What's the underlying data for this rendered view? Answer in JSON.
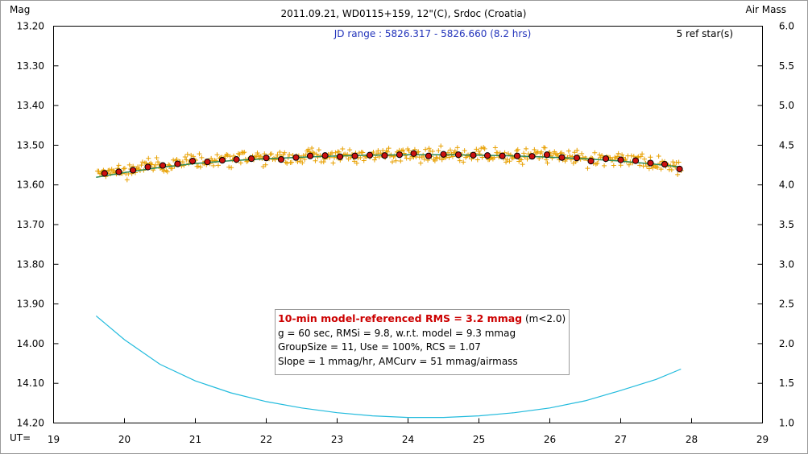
{
  "chart_data": {
    "type": "scatter",
    "title": "2011.09.21, WD0115+159, 12\"(C), Srdoc (Croatia)",
    "subtitle": "JD range : 5826.317 - 5826.660 (8.2 hrs)",
    "ref_stars": "5 ref star(s)",
    "ylabel_left": "Mag",
    "ylabel_right": "Air Mass",
    "xlabel": "UT=",
    "xlim": [
      19,
      29
    ],
    "ylim_left": [
      13.2,
      14.2
    ],
    "ylim_left_inverted": true,
    "ylim_right": [
      1.0,
      6.0
    ],
    "x_ticks": [
      "19",
      "20",
      "21",
      "22",
      "23",
      "24",
      "25",
      "26",
      "27",
      "28",
      "29"
    ],
    "y_left_ticks": [
      "13.20",
      "13.30",
      "13.40",
      "13.50",
      "13.60",
      "13.70",
      "13.80",
      "13.90",
      "14.00",
      "14.10",
      "14.20"
    ],
    "y_right_ticks": [
      "6.0",
      "5.5",
      "5.0",
      "4.5",
      "4.0",
      "3.5",
      "3.0",
      "2.5",
      "2.0",
      "1.5",
      "1.0"
    ],
    "grid": false,
    "colors": {
      "individual": "#e8a000",
      "binned_fill": "#cc1111",
      "model": "#2e8b57",
      "airmass": "#22bbdd",
      "subtitle": "#2233bb",
      "rms_headline": "#cc0000"
    },
    "series": [
      {
        "kind": "binned-10min",
        "marker": "red-circle",
        "x": [
          19.72,
          19.92,
          20.12,
          20.33,
          20.54,
          20.75,
          20.96,
          21.17,
          21.38,
          21.58,
          21.79,
          22.0,
          22.21,
          22.42,
          22.62,
          22.83,
          23.04,
          23.25,
          23.46,
          23.67,
          23.88,
          24.08,
          24.29,
          24.5,
          24.71,
          24.92,
          25.12,
          25.33,
          25.54,
          25.75,
          25.96,
          26.17,
          26.38,
          26.58,
          26.79,
          27.0,
          27.21,
          27.42,
          27.62,
          27.83
        ],
        "y": [
          13.571,
          13.567,
          13.563,
          13.555,
          13.551,
          13.547,
          13.54,
          13.542,
          13.538,
          13.536,
          13.534,
          13.532,
          13.536,
          13.531,
          13.527,
          13.526,
          13.529,
          13.527,
          13.525,
          13.526,
          13.524,
          13.521,
          13.527,
          13.523,
          13.524,
          13.525,
          13.526,
          13.527,
          13.527,
          13.528,
          13.524,
          13.531,
          13.532,
          13.54,
          13.534,
          13.537,
          13.539,
          13.545,
          13.548,
          13.56
        ]
      },
      {
        "kind": "model-fit",
        "x": [
          19.6,
          20.0,
          20.5,
          21.0,
          21.5,
          22.0,
          22.5,
          23.0,
          23.5,
          24.0,
          24.5,
          25.0,
          25.5,
          26.0,
          26.5,
          27.0,
          27.5,
          27.85
        ],
        "y": [
          13.581,
          13.569,
          13.556,
          13.546,
          13.539,
          13.534,
          13.53,
          13.527,
          13.525,
          13.524,
          13.524,
          13.525,
          13.527,
          13.53,
          13.534,
          13.54,
          13.548,
          13.555
        ]
      },
      {
        "kind": "airmass",
        "axis": "right",
        "x": [
          19.6,
          20.0,
          20.5,
          21.0,
          21.5,
          22.0,
          22.5,
          23.0,
          23.5,
          24.0,
          24.2,
          24.5,
          25.0,
          25.5,
          26.0,
          26.5,
          27.0,
          27.5,
          27.85
        ],
        "y": [
          2.35,
          2.05,
          1.74,
          1.53,
          1.38,
          1.27,
          1.19,
          1.13,
          1.09,
          1.07,
          1.07,
          1.07,
          1.09,
          1.13,
          1.19,
          1.28,
          1.41,
          1.55,
          1.68
        ]
      }
    ]
  },
  "info": {
    "rms_headline": "10-min model-referenced RMS = 3.2 mmag",
    "rms_note": "(m<2.0)",
    "line2": "g = 60 sec, RMSi = 9.8, w.r.t. model = 9.3 mmag",
    "line3": "GroupSize = 11, Use = 100%, RCS = 1.07",
    "line4": "Slope = 1 mmag/hr, AMCurv = 51 mmag/airmass"
  }
}
